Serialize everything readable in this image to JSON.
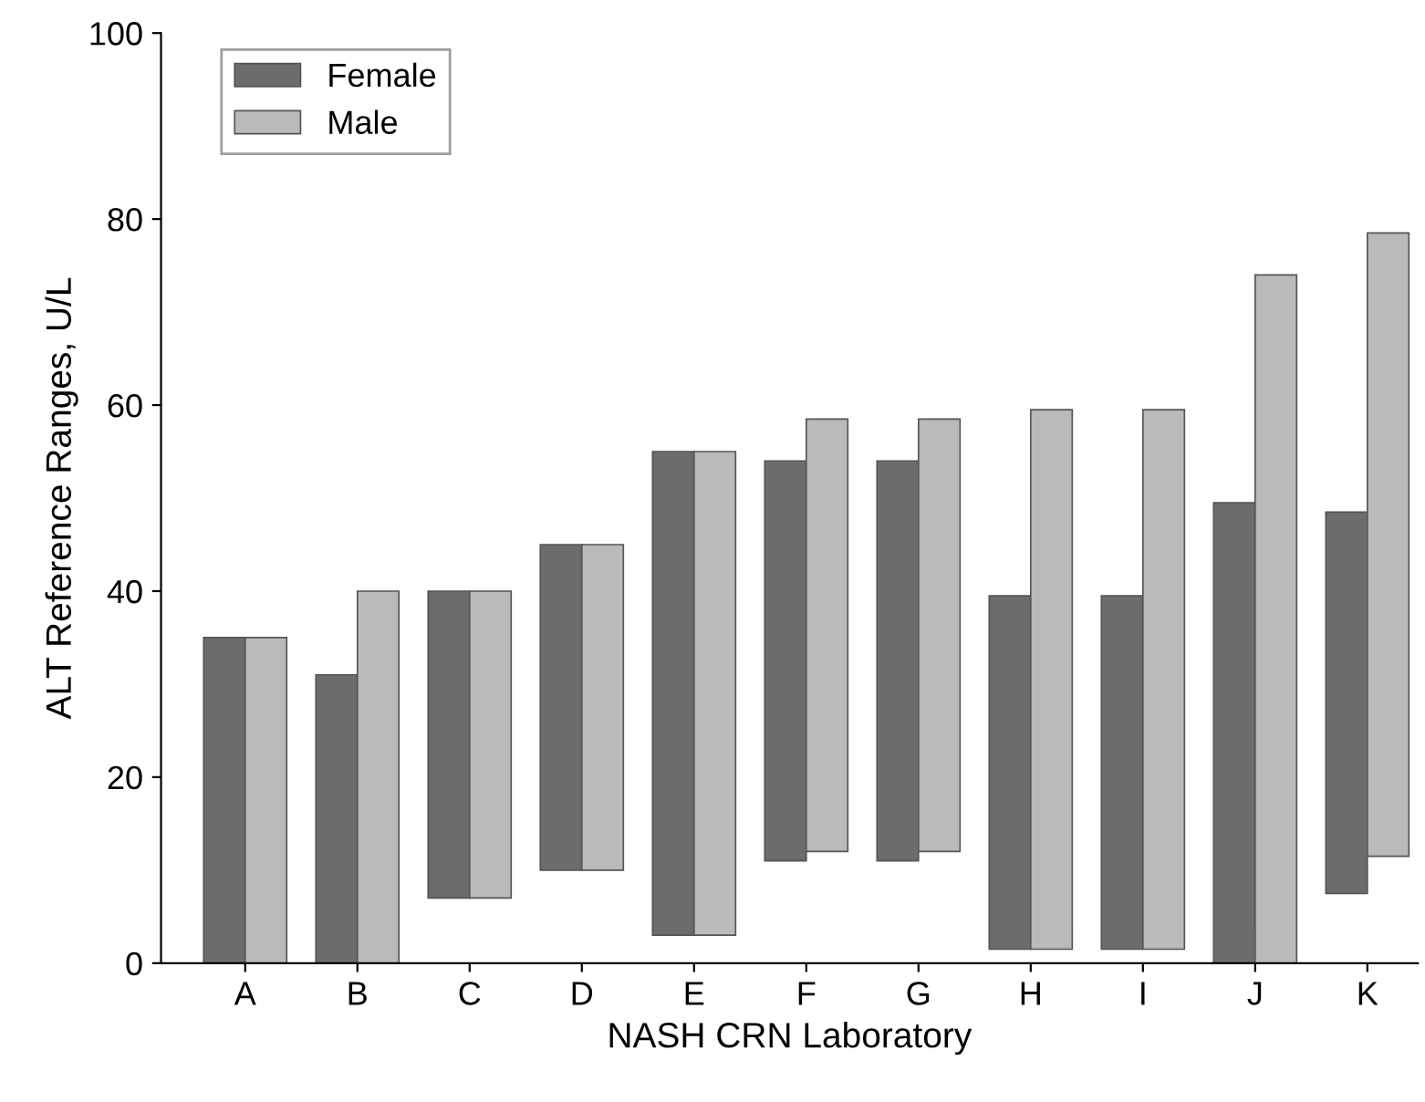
{
  "chart_data": {
    "type": "bar",
    "xlabel": "NASH CRN Laboratory",
    "ylabel": "ALT Reference Ranges, U/L",
    "categories": [
      "A",
      "B",
      "C",
      "D",
      "E",
      "F",
      "G",
      "H",
      "I",
      "J",
      "K"
    ],
    "series": [
      {
        "name": "Female",
        "color": "#6b6c6e",
        "base": [
          0,
          0,
          7,
          10,
          3,
          11,
          11,
          1.5,
          1.5,
          0,
          7.5
        ],
        "values": [
          35,
          31,
          33,
          35,
          52,
          43,
          43,
          38,
          38,
          49.5,
          41
        ]
      },
      {
        "name": "Male",
        "color": "#b9babc",
        "base": [
          0,
          0,
          7,
          10,
          3,
          12,
          12,
          1.5,
          1.5,
          0,
          11.5
        ],
        "values": [
          35,
          40,
          33,
          35,
          52,
          46.5,
          46.5,
          58,
          58,
          74,
          67
        ]
      }
    ],
    "ylim": [
      0,
      100
    ],
    "yticks": [
      0,
      20,
      40,
      60,
      80,
      100
    ],
    "grid": false,
    "legend": "top left"
  }
}
